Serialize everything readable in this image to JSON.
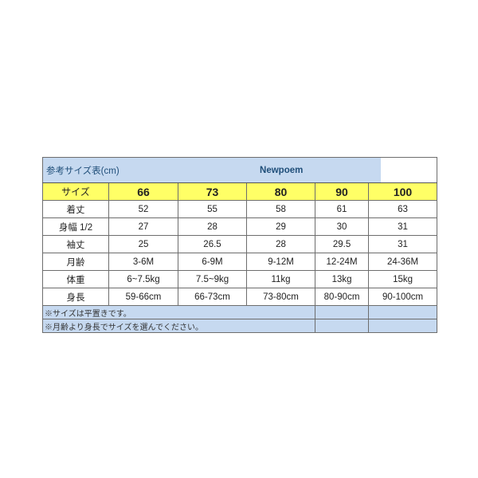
{
  "title": "参考サイズ表(cm)",
  "brand": "Newpoem",
  "header": {
    "label": "サイズ",
    "sizes": [
      "66",
      "73",
      "80",
      "90",
      "100"
    ]
  },
  "rows": [
    {
      "label": "着丈",
      "values": [
        "52",
        "55",
        "58",
        "61",
        "63"
      ]
    },
    {
      "label": "身幅 1/2",
      "values": [
        "27",
        "28",
        "29",
        "30",
        "31"
      ]
    },
    {
      "label": "袖丈",
      "values": [
        "25",
        "26.5",
        "28",
        "29.5",
        "31"
      ]
    },
    {
      "label": "月齢",
      "values": [
        "3-6M",
        "6-9M",
        "9-12M",
        "12-24M",
        "24-36M"
      ]
    },
    {
      "label": "体重",
      "values": [
        "6~7.5kg",
        "7.5~9kg",
        "11kg",
        "13kg",
        "15kg"
      ]
    },
    {
      "label": "身長",
      "values": [
        "59-66cm",
        "66-73cm",
        "73-80cm",
        "80-90cm",
        "90-100cm"
      ]
    }
  ],
  "notes": [
    "※サイズは平置きです。",
    "※月齢より身長でサイズを選んでください。"
  ],
  "colors": {
    "title_bg": "#c6d9f0",
    "header_bg": "#ffff66",
    "title_text": "#1f4e79"
  }
}
